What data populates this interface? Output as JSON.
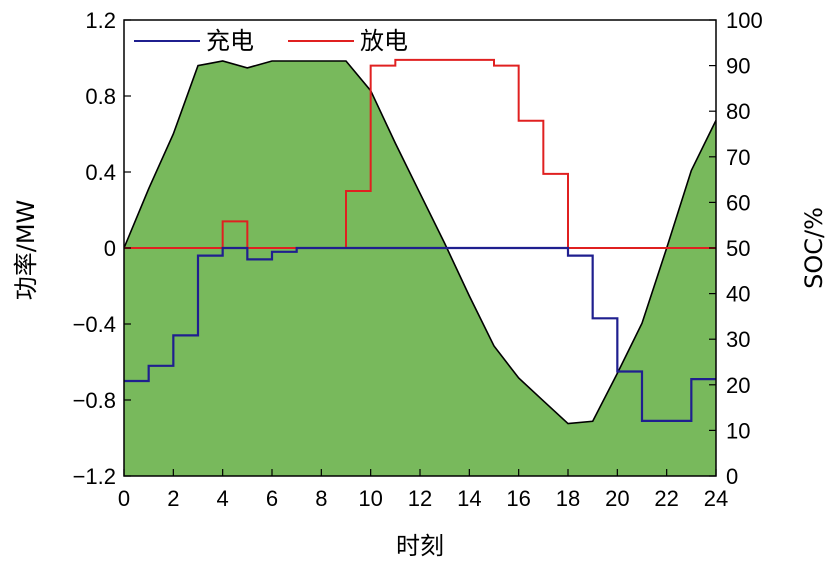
{
  "chart_data": {
    "type": "line",
    "title": "",
    "xlabel": "时刻",
    "ylabel_left": "功率/MW",
    "ylabel_right": "SOC/%",
    "xlim": [
      0,
      24
    ],
    "ylim_left": [
      -1.2,
      1.2
    ],
    "ylim_right": [
      0,
      100
    ],
    "x_ticks": [
      "0",
      "2",
      "4",
      "6",
      "8",
      "10",
      "12",
      "14",
      "16",
      "18",
      "20",
      "22",
      "24"
    ],
    "y_left_ticks": [
      "1.2",
      "0.8",
      "0.4",
      "0",
      "−0.4",
      "−0.8",
      "−1.2"
    ],
    "y_right_ticks": [
      "100",
      "90",
      "80",
      "70",
      "60",
      "50",
      "40",
      "30",
      "20",
      "10",
      "0"
    ],
    "legend": {
      "placement": "top-left"
    },
    "colors": {
      "charge": "#1f1f8f",
      "discharge": "#e02020",
      "soc_fill": "#78b95c",
      "soc_line": "#000000"
    },
    "series": [
      {
        "name": "充电",
        "kind": "step",
        "axis": "left",
        "x": [
          0,
          1,
          2,
          3,
          4,
          5,
          6,
          7,
          8,
          9,
          10,
          11,
          12,
          13,
          14,
          15,
          16,
          17,
          18,
          19,
          20,
          21,
          22,
          23,
          24
        ],
        "values": [
          -0.7,
          -0.62,
          -0.46,
          -0.04,
          0.0,
          -0.06,
          -0.02,
          0,
          0,
          0,
          0,
          0,
          0,
          0,
          0,
          0,
          0,
          0,
          -0.04,
          -0.37,
          -0.65,
          -0.91,
          -0.91,
          -0.69,
          -0.69
        ]
      },
      {
        "name": "放电",
        "kind": "step",
        "axis": "left",
        "x": [
          0,
          1,
          2,
          3,
          4,
          5,
          6,
          7,
          8,
          9,
          10,
          11,
          12,
          13,
          14,
          15,
          16,
          17,
          18,
          19,
          20,
          21,
          22,
          23,
          24
        ],
        "values": [
          0,
          0,
          0,
          0,
          0.14,
          0,
          0,
          0,
          0,
          0.3,
          0.96,
          0.99,
          0.99,
          0.99,
          0.99,
          0.96,
          0.67,
          0.39,
          0,
          0,
          0,
          0,
          0,
          0,
          0
        ]
      },
      {
        "name": "",
        "kind": "area",
        "axis": "right",
        "x": [
          0,
          1,
          2,
          3,
          3.5,
          4,
          5,
          6,
          7,
          8,
          9,
          10,
          11,
          12,
          13,
          14,
          15,
          16,
          17,
          18,
          19,
          20,
          21,
          22,
          23,
          24
        ],
        "values": [
          50,
          63,
          75,
          90,
          90.5,
          91,
          89.5,
          91,
          91,
          91,
          91,
          84.5,
          73,
          62,
          51,
          39.5,
          28.5,
          21.5,
          16.5,
          11.5,
          12,
          22.5,
          33.5,
          50,
          67,
          78
        ]
      }
    ]
  }
}
